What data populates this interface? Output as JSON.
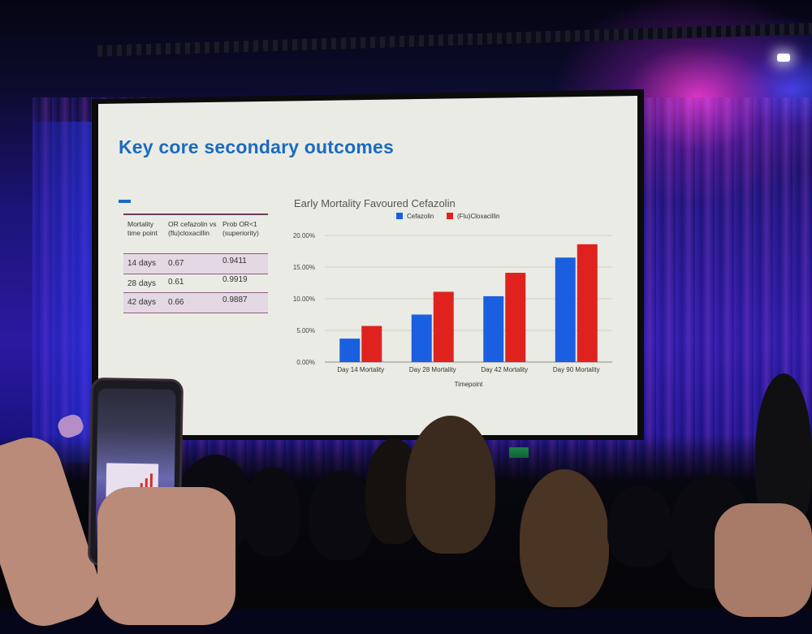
{
  "slide": {
    "title": "Key core secondary outcomes"
  },
  "table": {
    "headers": [
      "Mortality time point",
      "OR cefazolin vs (flu)cloxacillin",
      "Prob OR<1 (superiority)"
    ],
    "rows": [
      [
        "14 days",
        "0.67",
        "0.9411"
      ],
      [
        "28 days",
        "0.61",
        "0.9919"
      ],
      [
        "42 days",
        "0.66",
        "0.9887"
      ]
    ]
  },
  "chart_data": {
    "type": "bar",
    "title": "Early Mortality Favoured Cefazolin",
    "xlabel": "Timepoint",
    "ylabel": "",
    "categories": [
      "Day 14 Mortality",
      "Day 28 Mortality",
      "Day 42 Mortality",
      "Day 90 Mortality"
    ],
    "series": [
      {
        "name": "Cefazolin",
        "color": "#1a5fe0",
        "values": [
          3.7,
          7.5,
          10.4,
          16.5
        ]
      },
      {
        "name": "(Flu)Cloxacillin",
        "color": "#e0221f",
        "values": [
          5.7,
          11.1,
          14.1,
          18.6
        ]
      }
    ],
    "ylim": [
      0,
      20
    ],
    "yticks": [
      "0.00%",
      "5.00%",
      "10.00%",
      "15.00%",
      "20.00%"
    ],
    "grid": true,
    "legend": "top"
  },
  "colors": {
    "title_blue": "#1a6bbf",
    "table_accent": "#8a5f80",
    "exit_sign": "#1fb25a"
  }
}
